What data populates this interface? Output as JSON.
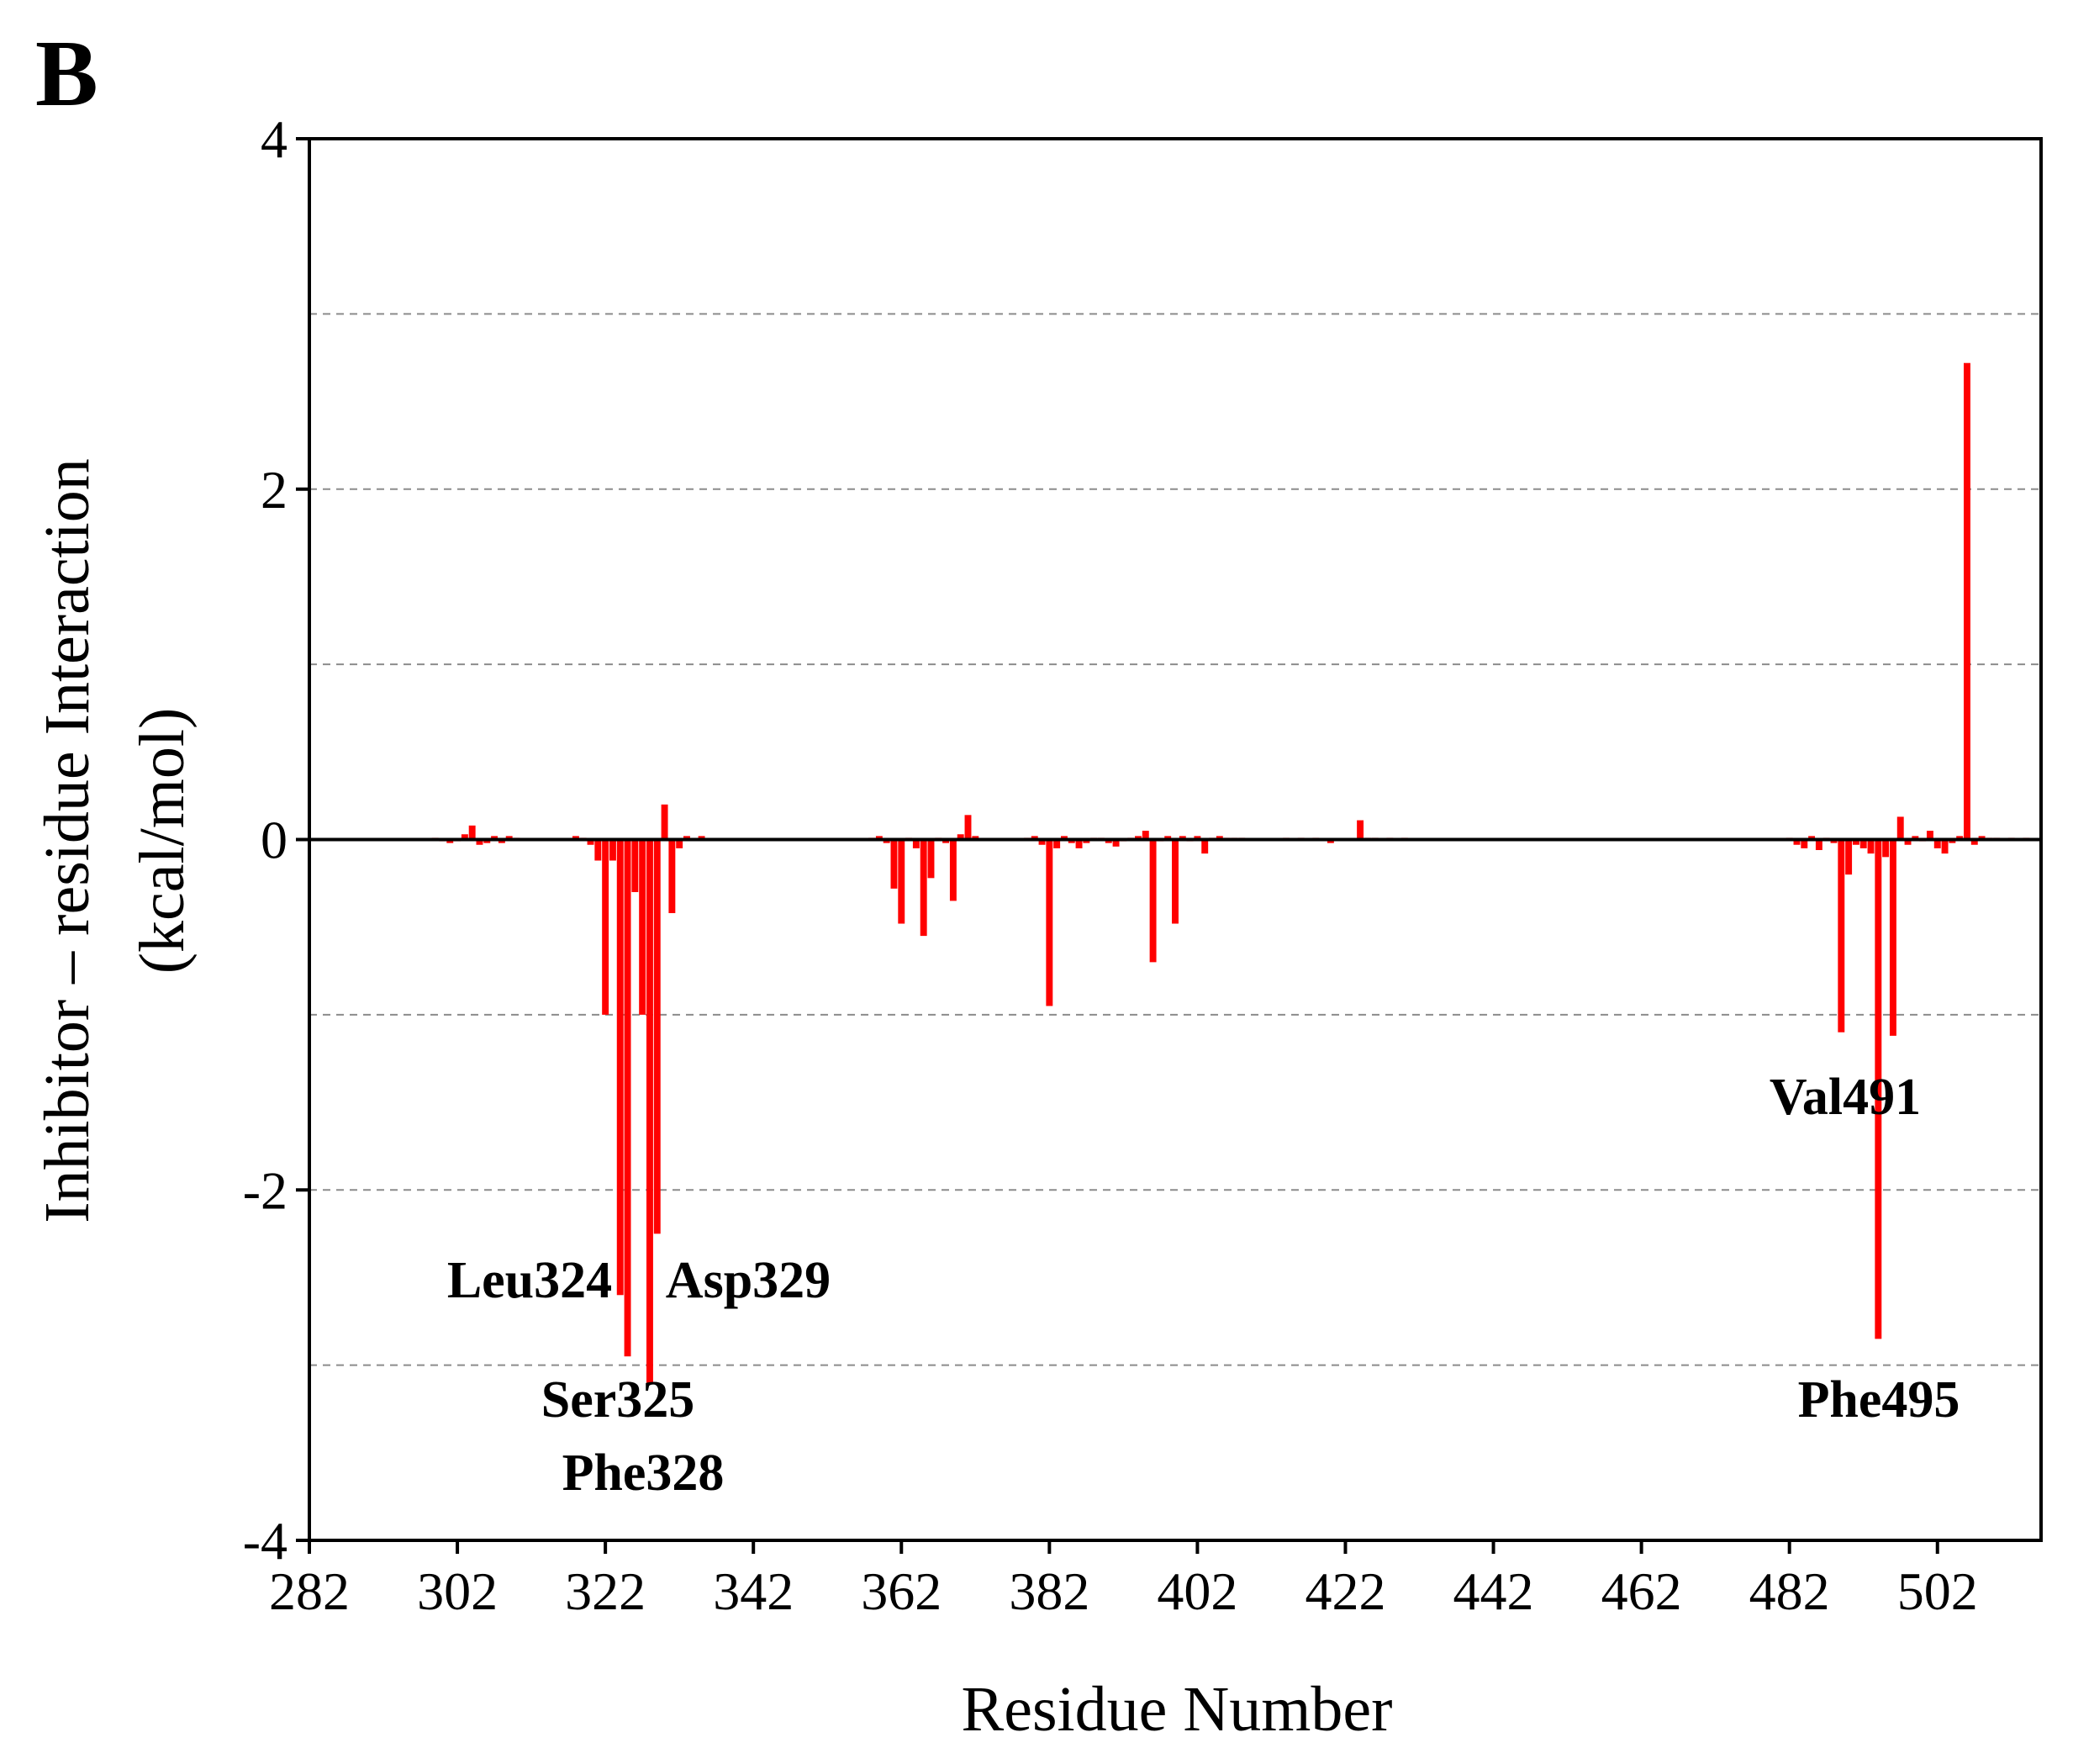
{
  "panel_label": "B",
  "chart_data": {
    "type": "bar",
    "xlabel": "Residue Number",
    "ylabel_line1": "Inhibitor – residue Interaction",
    "ylabel_line2": "(kcal/mol)",
    "xlim": [
      282,
      516
    ],
    "ylim": [
      -4,
      4
    ],
    "x_ticks": [
      282,
      302,
      322,
      342,
      362,
      382,
      402,
      422,
      442,
      462,
      482,
      502
    ],
    "y_ticks": [
      4,
      2,
      0,
      -2,
      -4
    ],
    "grid": {
      "horizontal_dashed_at": [
        3,
        2,
        1,
        -1,
        -2,
        -3
      ]
    },
    "bar_color": "#ff0000",
    "series": [
      {
        "x": [
          299,
          300,
          301,
          302,
          303,
          304,
          305,
          306,
          307,
          308,
          309,
          310,
          318,
          319,
          320,
          321,
          322,
          323,
          324,
          325,
          326,
          327,
          328,
          329,
          330,
          331,
          332,
          333,
          335,
          358,
          359,
          360,
          361,
          362,
          363,
          364,
          365,
          366,
          367,
          368,
          369,
          370,
          371,
          372,
          379,
          380,
          381,
          382,
          383,
          384,
          385,
          386,
          387,
          388,
          389,
          390,
          391,
          392,
          393,
          394,
          395,
          396,
          397,
          398,
          399,
          400,
          401,
          402,
          403,
          404,
          405,
          406,
          407,
          408,
          414,
          416,
          418,
          420,
          424,
          425,
          426,
          428,
          430,
          482,
          483,
          484,
          485,
          486,
          487,
          488,
          489,
          490,
          491,
          492,
          493,
          494,
          495,
          496,
          497,
          498,
          499,
          500,
          501,
          502,
          503,
          504,
          505,
          506,
          507,
          508,
          509,
          510,
          512,
          514
        ],
        "values": [
          0.01,
          -0.01,
          -0.02,
          -0.01,
          0.03,
          0.08,
          -0.03,
          -0.02,
          0.02,
          -0.02,
          0.02,
          0.01,
          0.02,
          0.01,
          -0.03,
          -0.12,
          -1.0,
          -0.12,
          -2.6,
          -2.95,
          -0.3,
          -1.0,
          -3.1,
          -2.25,
          0.2,
          -0.42,
          -0.05,
          0.02,
          0.02,
          0.01,
          0.02,
          -0.02,
          -0.28,
          -0.48,
          0.01,
          -0.05,
          -0.55,
          -0.22,
          0.01,
          -0.02,
          -0.35,
          0.03,
          0.14,
          0.02,
          0.01,
          0.02,
          -0.03,
          -0.95,
          -0.05,
          0.02,
          -0.02,
          -0.05,
          -0.02,
          0.01,
          0.01,
          -0.02,
          -0.04,
          -0.01,
          0.01,
          0.02,
          0.05,
          -0.7,
          -0.01,
          0.02,
          -0.48,
          0.02,
          -0.01,
          0.02,
          -0.08,
          0.01,
          0.02,
          0.01,
          0.01,
          0.01,
          0.01,
          0.01,
          0.01,
          -0.02,
          0.11,
          0.01,
          0.01,
          0.01,
          0.01,
          0.01,
          -0.03,
          -0.05,
          0.02,
          -0.06,
          0.01,
          -0.02,
          -1.1,
          -0.2,
          -0.03,
          -0.05,
          -0.08,
          -2.85,
          -0.1,
          -1.12,
          0.13,
          -0.03,
          0.02,
          -0.01,
          0.05,
          -0.05,
          -0.08,
          -0.02,
          0.02,
          2.72,
          -0.03,
          0.02,
          0.01,
          0.01,
          0.01,
          0.01
        ]
      }
    ],
    "annotations": [
      {
        "text": "Leu324",
        "x": 324
      },
      {
        "text": "Asp329",
        "x": 329
      },
      {
        "text": "Ser325",
        "x": 325
      },
      {
        "text": "Phe328",
        "x": 328
      },
      {
        "text": "Val491",
        "x": 491
      },
      {
        "text": "Phe495",
        "x": 495
      }
    ]
  }
}
